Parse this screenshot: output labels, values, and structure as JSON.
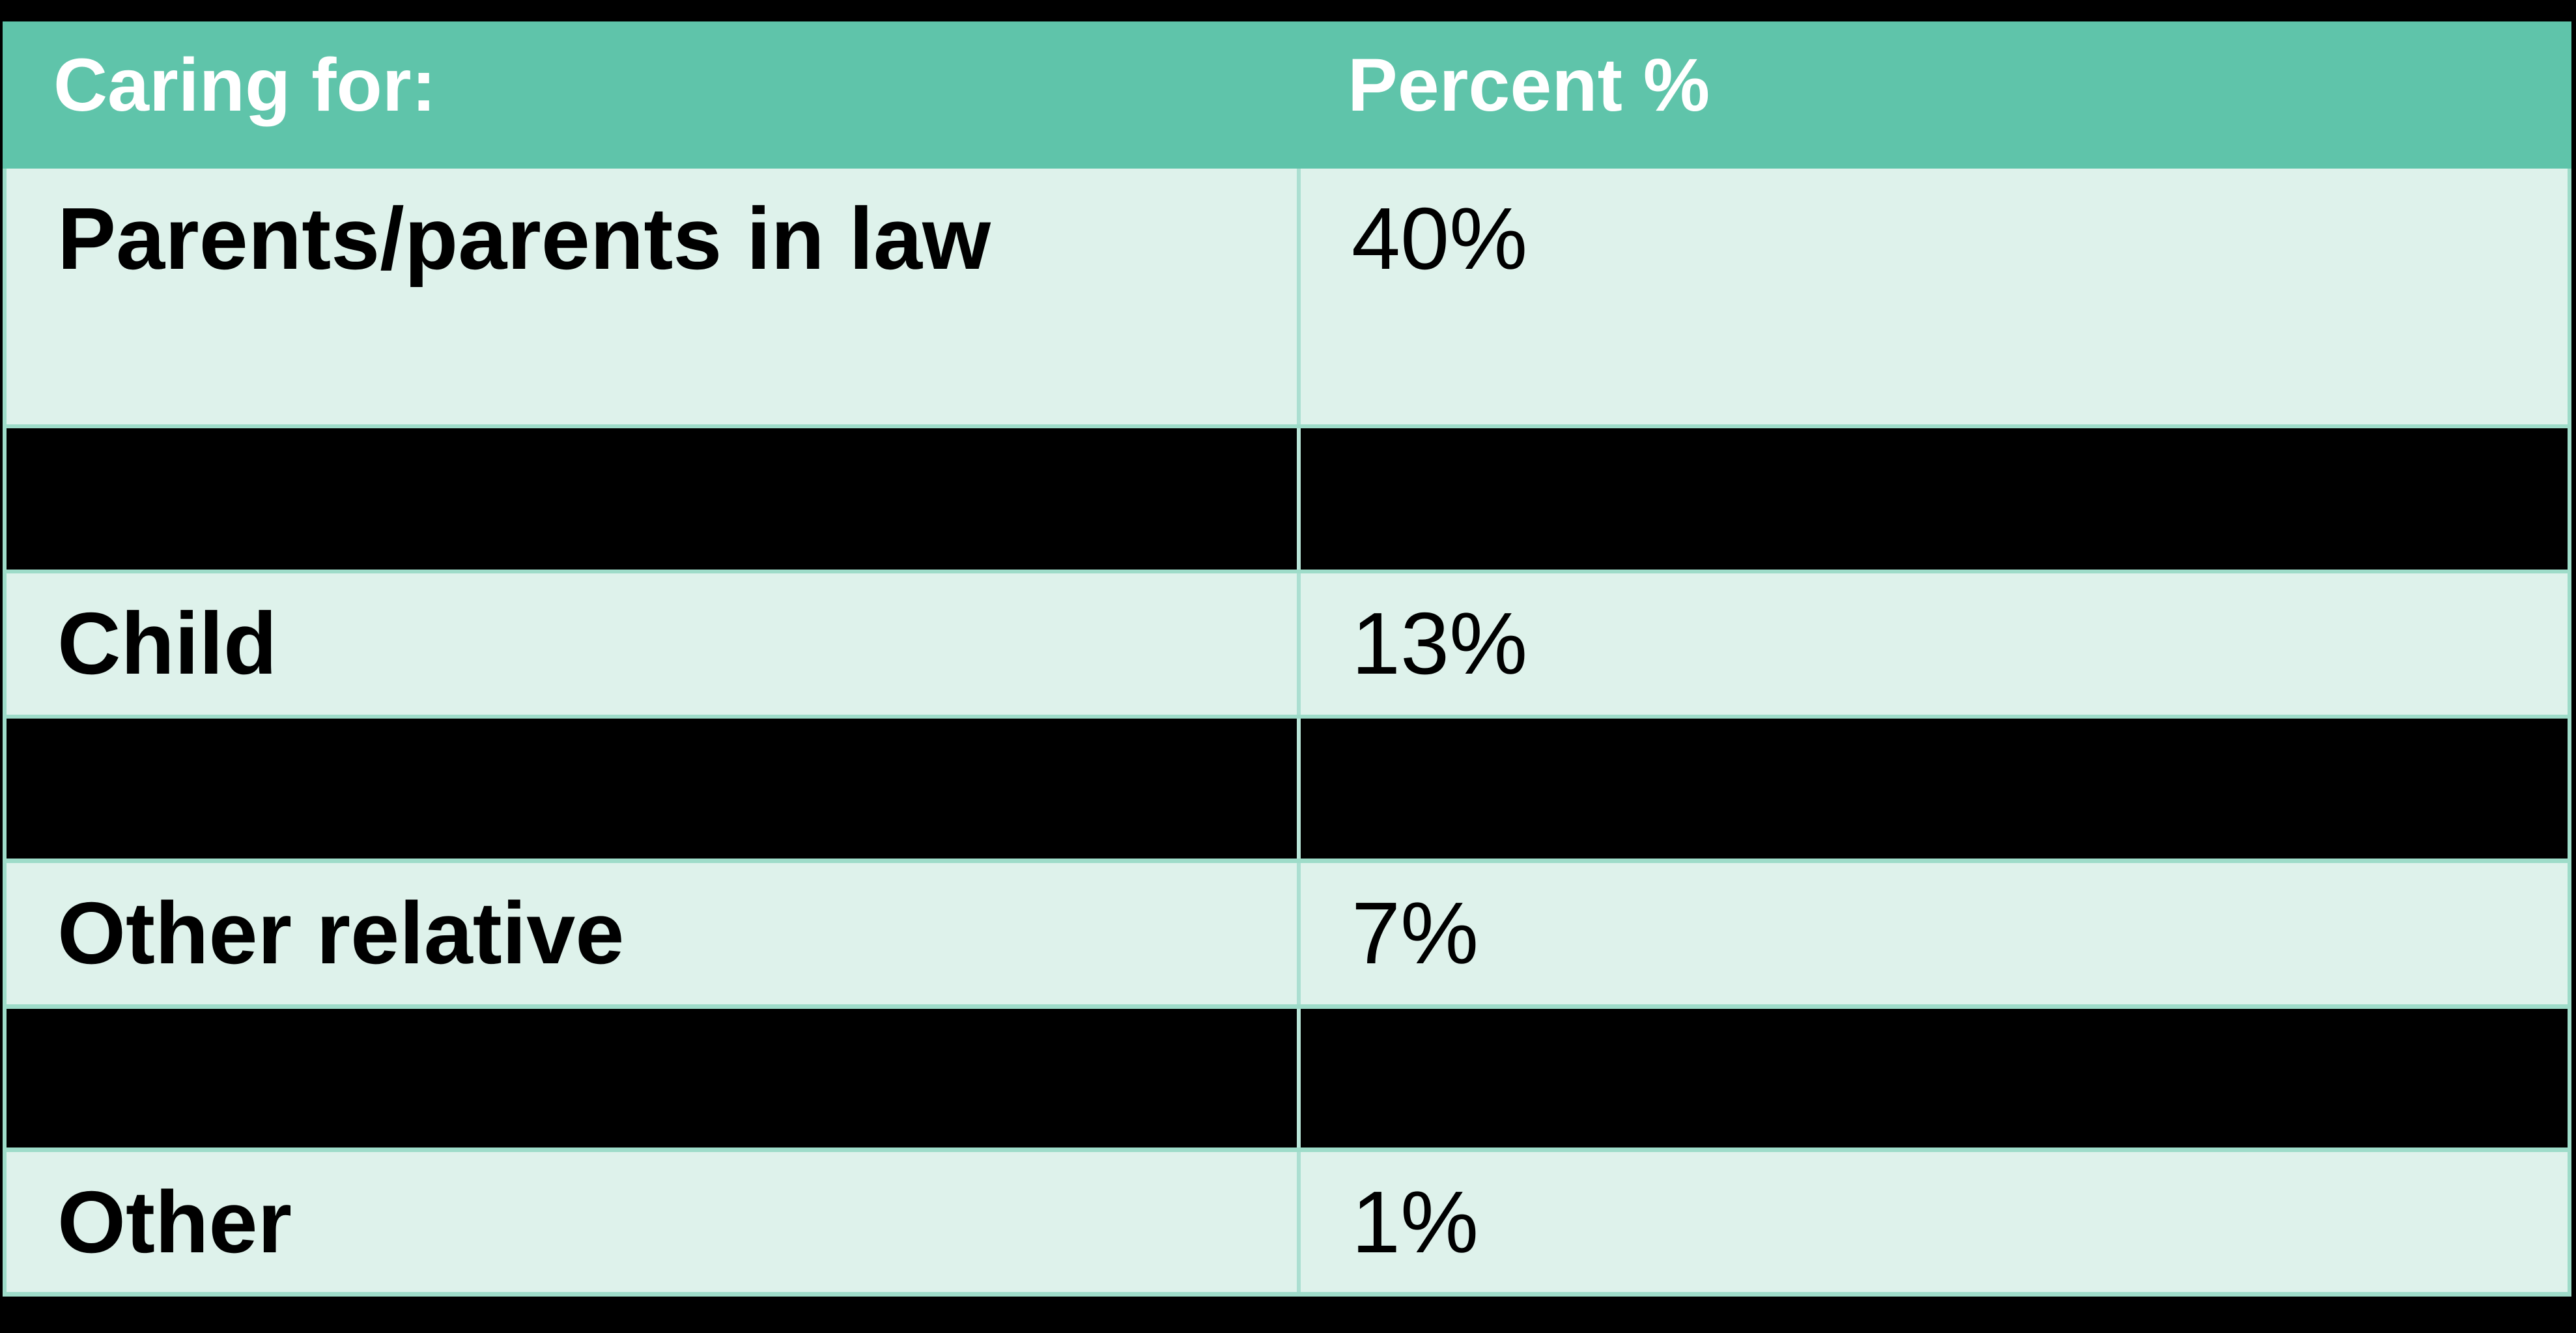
{
  "table": {
    "header": {
      "col1": "Caring for:",
      "col2": "Percent %"
    },
    "rows": [
      {
        "type": "data",
        "label": "Parents/parents in law",
        "value": "40%"
      },
      {
        "type": "redacted",
        "label": "",
        "value": ""
      },
      {
        "type": "data",
        "label": "Child",
        "value": "13%"
      },
      {
        "type": "redacted",
        "label": "",
        "value": ""
      },
      {
        "type": "data",
        "label": "Other relative",
        "value": "7%"
      },
      {
        "type": "redacted",
        "label": "",
        "value": ""
      },
      {
        "type": "data",
        "label": "Other",
        "value": "1%"
      }
    ]
  },
  "colors": {
    "header_background": "#5fc4aa",
    "header_text": "#ffffff",
    "row_background": "#def2eb",
    "border_band": "#9edcc9",
    "column_divider_light": "#abdfd1",
    "column_divider_dark": "#b9e5d8",
    "redacted_row": "#000000",
    "page_background": "#000000",
    "body_text": "#000000"
  },
  "chart_data": {
    "type": "table",
    "title": "Caring for:",
    "columns": [
      "Caring for:",
      "Percent %"
    ],
    "categories": [
      "Parents/parents in law",
      "Child",
      "Other relative",
      "Other"
    ],
    "values": [
      40,
      13,
      7,
      1
    ],
    "value_format": "percent",
    "layout_hints": {
      "redacted_black_rows_between_data_rows": true,
      "column_split_fraction": 0.504
    }
  }
}
